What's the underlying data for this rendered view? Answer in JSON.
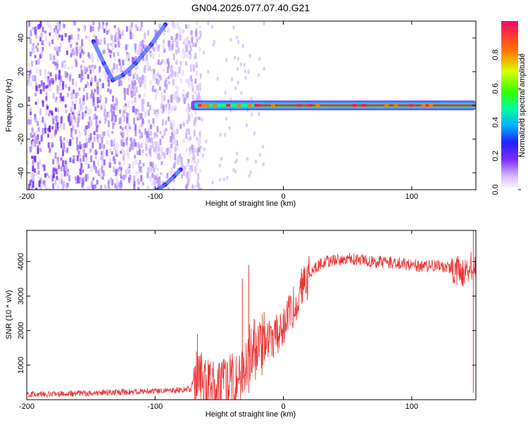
{
  "chart_data": [
    {
      "type": "heatmap",
      "title": "GN04.2026.077.07.40.G21",
      "xlabel": "Height of straight line (km)",
      "ylabel": "Frequency (Hz)",
      "xlim": [
        -200,
        150
      ],
      "ylim": [
        -50,
        50
      ],
      "xticks": [
        -200,
        -100,
        0,
        100
      ],
      "yticks": [
        -40,
        -20,
        0,
        20,
        40
      ],
      "colorbar": {
        "label": "Normalized spectral amplitude",
        "range": [
          0,
          1
        ],
        "ticks": [
          0.0,
          0.2,
          0.4,
          0.6,
          0.8
        ]
      },
      "features": {
        "noise_region_x": [
          -200,
          -65
        ],
        "carrier_line": {
          "x_start": -72,
          "x_end": 150,
          "frequency": 0
        },
        "noise_curve_upper": {
          "x": [
            -148,
            -140,
            -133,
            -125,
            -115,
            -103,
            -92
          ],
          "freq": [
            38,
            25,
            15,
            18,
            25,
            36,
            48
          ]
        },
        "noise_curve_lower": {
          "x": [
            -98,
            -92,
            -85,
            -80
          ],
          "freq": [
            -50,
            -47,
            -42,
            -38
          ]
        }
      }
    },
    {
      "type": "line",
      "xlabel": "Height of straight line (km)",
      "ylabel": "SNR (10 * v/v)",
      "xlim": [
        -200,
        150
      ],
      "ylim": [
        0,
        4900
      ],
      "xticks": [
        -200,
        -100,
        0,
        100
      ],
      "yticks": [
        1000,
        2000,
        3000,
        4000
      ],
      "series": [
        {
          "name": "SNR",
          "color": "#ee3333",
          "x": [
            -200,
            -180,
            -160,
            -140,
            -120,
            -100,
            -90,
            -80,
            -72,
            -68,
            -65,
            -60,
            -55,
            -50,
            -45,
            -40,
            -35,
            -30,
            -25,
            -20,
            -15,
            -10,
            -5,
            0,
            5,
            10,
            15,
            20,
            25,
            30,
            40,
            50,
            60,
            70,
            80,
            90,
            100,
            110,
            120,
            130,
            140,
            150
          ],
          "values": [
            150,
            160,
            180,
            200,
            230,
            250,
            260,
            280,
            320,
            800,
            600,
            500,
            300,
            250,
            400,
            500,
            300,
            800,
            1500,
            1400,
            1700,
            1800,
            1900,
            2100,
            2500,
            2900,
            3300,
            3600,
            3800,
            3950,
            4050,
            4100,
            4050,
            4000,
            3980,
            3950,
            3900,
            3850,
            3900,
            3800,
            3700,
            4000
          ]
        }
      ]
    }
  ],
  "colors": {
    "line": "#ee3333",
    "frame": "#000000"
  }
}
